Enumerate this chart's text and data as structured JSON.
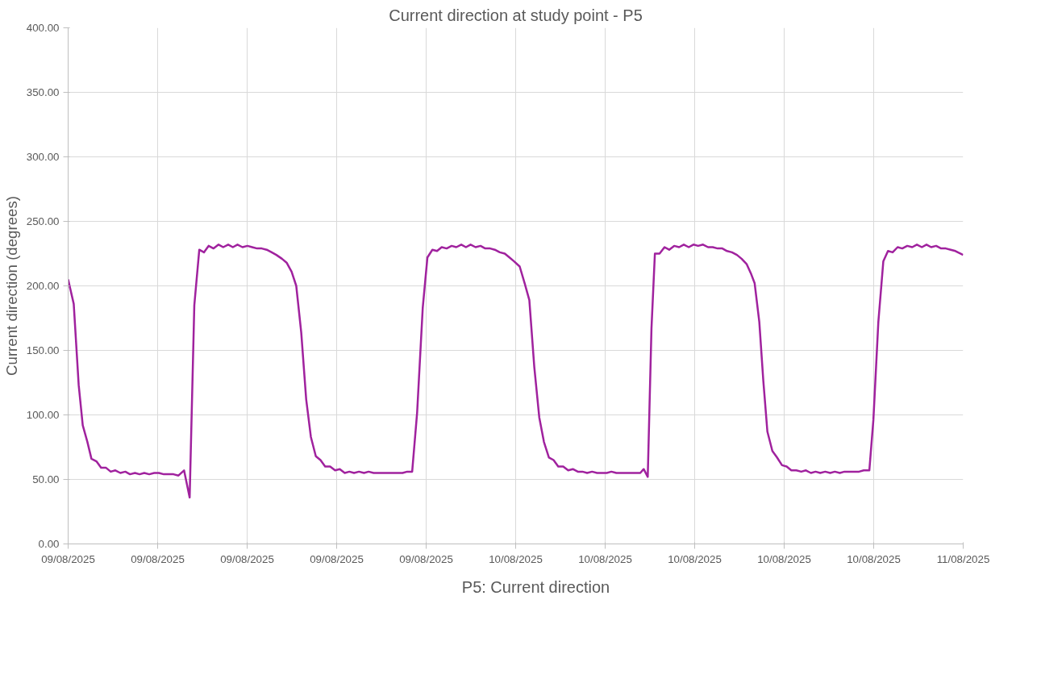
{
  "chart_data": {
    "type": "line",
    "title": "Current direction at study point - P5",
    "ylabel": "Current direction (degrees)",
    "x": [
      "2025-08-09T00:00",
      "2025-08-09T00:18",
      "2025-08-09T00:34",
      "2025-08-09T00:47",
      "2025-08-09T01:02",
      "2025-08-09T01:15",
      "2025-08-09T01:31",
      "2025-08-09T01:46",
      "2025-08-09T02:02",
      "2025-08-09T02:17",
      "2025-08-09T02:32",
      "2025-08-09T02:48",
      "2025-08-09T03:04",
      "2025-08-09T03:19",
      "2025-08-09T03:35",
      "2025-08-09T03:50",
      "2025-08-09T04:05",
      "2025-08-09T04:21",
      "2025-08-09T04:37",
      "2025-08-09T04:52",
      "2025-08-09T05:08",
      "2025-08-09T05:23",
      "2025-08-09T05:39",
      "2025-08-09T05:55",
      "2025-08-09T06:13",
      "2025-08-09T06:31",
      "2025-08-09T06:46",
      "2025-08-09T07:02",
      "2025-08-09T07:17",
      "2025-08-09T07:32",
      "2025-08-09T07:48",
      "2025-08-09T08:04",
      "2025-08-09T08:19",
      "2025-08-09T08:35",
      "2025-08-09T08:50",
      "2025-08-09T09:05",
      "2025-08-09T09:21",
      "2025-08-09T09:37",
      "2025-08-09T09:52",
      "2025-08-09T10:08",
      "2025-08-09T10:23",
      "2025-08-09T10:39",
      "2025-08-09T10:55",
      "2025-08-09T11:10",
      "2025-08-09T11:28",
      "2025-08-09T11:43",
      "2025-08-09T11:59",
      "2025-08-09T12:14",
      "2025-08-09T12:30",
      "2025-08-09T12:46",
      "2025-08-09T13:01",
      "2025-08-09T13:17",
      "2025-08-09T13:32",
      "2025-08-09T13:47",
      "2025-08-09T14:03",
      "2025-08-09T14:19",
      "2025-08-09T14:34",
      "2025-08-09T14:50",
      "2025-08-09T15:05",
      "2025-08-09T15:20",
      "2025-08-09T15:36",
      "2025-08-09T15:52",
      "2025-08-09T16:07",
      "2025-08-09T16:23",
      "2025-08-09T16:38",
      "2025-08-09T16:54",
      "2025-08-09T17:10",
      "2025-08-09T17:25",
      "2025-08-09T17:40",
      "2025-08-09T17:56",
      "2025-08-09T18:11",
      "2025-08-09T18:27",
      "2025-08-09T18:43",
      "2025-08-09T19:01",
      "2025-08-09T19:16",
      "2025-08-09T19:32",
      "2025-08-09T19:47",
      "2025-08-09T20:02",
      "2025-08-09T20:18",
      "2025-08-09T20:34",
      "2025-08-09T20:49",
      "2025-08-09T21:05",
      "2025-08-09T21:20",
      "2025-08-09T21:35",
      "2025-08-09T21:51",
      "2025-08-09T22:07",
      "2025-08-09T22:22",
      "2025-08-09T22:38",
      "2025-08-09T22:53",
      "2025-08-09T23:09",
      "2025-08-09T23:25",
      "2025-08-09T23:40",
      "2025-08-09T23:55",
      "2025-08-10T00:13",
      "2025-08-10T00:29",
      "2025-08-10T00:44",
      "2025-08-10T01:00",
      "2025-08-10T01:16",
      "2025-08-10T01:31",
      "2025-08-10T01:47",
      "2025-08-10T02:02",
      "2025-08-10T02:17",
      "2025-08-10T02:33",
      "2025-08-10T02:49",
      "2025-08-10T03:04",
      "2025-08-10T03:20",
      "2025-08-10T03:35",
      "2025-08-10T03:50",
      "2025-08-10T04:06",
      "2025-08-10T04:22",
      "2025-08-10T04:37",
      "2025-08-10T04:53",
      "2025-08-10T05:08",
      "2025-08-10T05:24",
      "2025-08-10T05:40",
      "2025-08-10T05:55",
      "2025-08-10T06:10",
      "2025-08-10T06:26",
      "2025-08-10T06:41",
      "2025-08-10T06:52",
      "2025-08-10T07:05",
      "2025-08-10T07:17",
      "2025-08-10T07:28",
      "2025-08-10T07:43",
      "2025-08-10T07:59",
      "2025-08-10T08:14",
      "2025-08-10T08:30",
      "2025-08-10T08:46",
      "2025-08-10T09:01",
      "2025-08-10T09:17",
      "2025-08-10T09:32",
      "2025-08-10T09:47",
      "2025-08-10T10:03",
      "2025-08-10T10:19",
      "2025-08-10T10:34",
      "2025-08-10T10:50",
      "2025-08-10T11:05",
      "2025-08-10T11:20",
      "2025-08-10T11:36",
      "2025-08-10T11:52",
      "2025-08-10T12:07",
      "2025-08-10T12:23",
      "2025-08-10T12:38",
      "2025-08-10T12:49",
      "2025-08-10T13:04",
      "2025-08-10T13:17",
      "2025-08-10T13:30",
      "2025-08-10T13:46",
      "2025-08-10T14:01",
      "2025-08-10T14:17",
      "2025-08-10T14:32",
      "2025-08-10T14:47",
      "2025-08-10T15:03",
      "2025-08-10T15:19",
      "2025-08-10T15:34",
      "2025-08-10T15:50",
      "2025-08-10T16:05",
      "2025-08-10T16:20",
      "2025-08-10T16:36",
      "2025-08-10T16:52",
      "2025-08-10T17:07",
      "2025-08-10T17:23",
      "2025-08-10T17:38",
      "2025-08-10T17:54",
      "2025-08-10T18:10",
      "2025-08-10T18:25",
      "2025-08-10T18:40",
      "2025-08-10T18:58",
      "2025-08-10T19:11",
      "2025-08-10T19:27",
      "2025-08-10T19:43",
      "2025-08-10T19:58",
      "2025-08-10T20:13",
      "2025-08-10T20:29",
      "2025-08-10T20:44",
      "2025-08-10T21:00",
      "2025-08-10T21:16",
      "2025-08-10T21:31",
      "2025-08-10T21:47",
      "2025-08-10T22:02",
      "2025-08-10T22:17",
      "2025-08-10T22:33",
      "2025-08-10T22:49",
      "2025-08-10T23:04",
      "2025-08-10T23:20",
      "2025-08-10T23:35",
      "2025-08-11T00:00"
    ],
    "series": [
      {
        "name": "P5: Current direction",
        "color": "#a0229e",
        "values": [
          205,
          186,
          123,
          92,
          79,
          66,
          64,
          59,
          59,
          56,
          57,
          55,
          56,
          54,
          55,
          54,
          55,
          54,
          55,
          55,
          54,
          54,
          54,
          53,
          57,
          36,
          185,
          228,
          226,
          231,
          229,
          232,
          230,
          232,
          230,
          232,
          230,
          231,
          230,
          229,
          229,
          228,
          226,
          224,
          221,
          218,
          211,
          200,
          164,
          112,
          83,
          68,
          65,
          60,
          60,
          57,
          58,
          55,
          56,
          55,
          56,
          55,
          56,
          55,
          55,
          55,
          55,
          55,
          55,
          55,
          56,
          56,
          102,
          183,
          222,
          228,
          227,
          230,
          229,
          231,
          230,
          232,
          230,
          232,
          230,
          231,
          229,
          229,
          228,
          226,
          225,
          222,
          219,
          215,
          202,
          189,
          137,
          98,
          79,
          67,
          65,
          60,
          60,
          57,
          58,
          56,
          56,
          55,
          56,
          55,
          55,
          55,
          56,
          55,
          55,
          55,
          55,
          55,
          55,
          58,
          52,
          167,
          225,
          225,
          230,
          228,
          231,
          230,
          232,
          230,
          232,
          231,
          232,
          230,
          230,
          229,
          229,
          227,
          226,
          224,
          221,
          217,
          209,
          202,
          172,
          126,
          87,
          72,
          67,
          61,
          60,
          57,
          57,
          56,
          57,
          55,
          56,
          55,
          56,
          55,
          56,
          55,
          56,
          56,
          56,
          56,
          57,
          57,
          96,
          172,
          219,
          227,
          226,
          230,
          229,
          231,
          230,
          232,
          230,
          232,
          230,
          231,
          229,
          229,
          228,
          227,
          224
        ]
      }
    ],
    "xlim": [
      "2025-08-09T00:00",
      "2025-08-11T00:00"
    ],
    "xticks": [
      {
        "value": "2025-08-09T00:00",
        "label": "09/08/2025"
      },
      {
        "value": "2025-08-09T04:48",
        "label": "09/08/2025"
      },
      {
        "value": "2025-08-09T09:36",
        "label": "09/08/2025"
      },
      {
        "value": "2025-08-09T14:24",
        "label": "09/08/2025"
      },
      {
        "value": "2025-08-09T19:12",
        "label": "09/08/2025"
      },
      {
        "value": "2025-08-10T00:00",
        "label": "10/08/2025"
      },
      {
        "value": "2025-08-10T04:48",
        "label": "10/08/2025"
      },
      {
        "value": "2025-08-10T09:36",
        "label": "10/08/2025"
      },
      {
        "value": "2025-08-10T14:24",
        "label": "10/08/2025"
      },
      {
        "value": "2025-08-10T19:12",
        "label": "10/08/2025"
      },
      {
        "value": "2025-08-11T00:00",
        "label": "11/08/2025"
      }
    ],
    "ylim": [
      0,
      400
    ],
    "yticks": [
      {
        "value": 0,
        "label": "0.00"
      },
      {
        "value": 50,
        "label": "50.00"
      },
      {
        "value": 100,
        "label": "100.00"
      },
      {
        "value": 150,
        "label": "150.00"
      },
      {
        "value": 200,
        "label": "200.00"
      },
      {
        "value": 250,
        "label": "250.00"
      },
      {
        "value": 300,
        "label": "300.00"
      },
      {
        "value": 350,
        "label": "350.00"
      },
      {
        "value": 400,
        "label": "400.00"
      }
    ],
    "grid": true,
    "legend": "bottom",
    "marker": "none",
    "line_style": "solid"
  }
}
